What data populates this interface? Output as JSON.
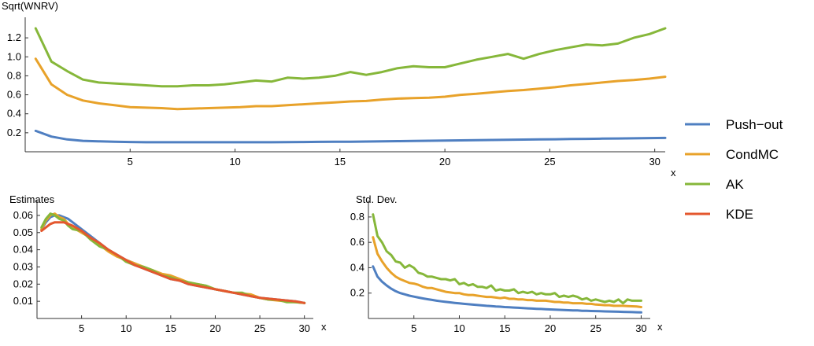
{
  "colors": {
    "pushout": "#4f7fc1",
    "condmc": "#e8a22a",
    "ak": "#86b73a",
    "kde": "#e4572e"
  },
  "legend": [
    {
      "name": "Push−out",
      "color": "#4f7fc1"
    },
    {
      "name": "CondMC",
      "color": "#e8a22a"
    },
    {
      "name": "AK",
      "color": "#86b73a"
    },
    {
      "name": "KDE",
      "color": "#e4572e"
    }
  ],
  "chart_data": [
    {
      "id": "top",
      "type": "line",
      "title": "",
      "xlabel": "x",
      "ylabel": "Sqrt(WNRV)",
      "xlim": [
        0,
        30.5
      ],
      "ylim": [
        0,
        1.35
      ],
      "xticks": [
        5,
        10,
        15,
        20,
        25,
        30
      ],
      "yticks": [
        0.2,
        0.4,
        0.6,
        0.8,
        1.0,
        1.2
      ],
      "ytick_labels": [
        "0.2",
        "0.4",
        "0.6",
        "0.8",
        "1.0",
        "1.2"
      ],
      "x": [
        0.5,
        1.25,
        2,
        2.75,
        3.5,
        4.25,
        5,
        5.75,
        6.5,
        7.25,
        8,
        8.75,
        9.5,
        10.25,
        11,
        11.75,
        12.5,
        13.25,
        14,
        14.75,
        15.5,
        16.25,
        17,
        17.75,
        18.5,
        19.25,
        20,
        20.75,
        21.5,
        22.25,
        23,
        23.75,
        24.5,
        25.25,
        26,
        26.75,
        27.5,
        28.25,
        29,
        29.75,
        30.5
      ],
      "series": [
        {
          "name": "Push−out",
          "color": "#4f7fc1",
          "values": [
            0.22,
            0.16,
            0.13,
            0.115,
            0.11,
            0.105,
            0.103,
            0.1,
            0.1,
            0.1,
            0.1,
            0.1,
            0.1,
            0.1,
            0.1,
            0.1,
            0.102,
            0.103,
            0.104,
            0.105,
            0.106,
            0.108,
            0.11,
            0.112,
            0.114,
            0.116,
            0.118,
            0.12,
            0.122,
            0.124,
            0.126,
            0.128,
            0.13,
            0.132,
            0.134,
            0.136,
            0.138,
            0.14,
            0.142,
            0.144,
            0.146
          ]
        },
        {
          "name": "CondMC",
          "color": "#e8a22a",
          "values": [
            0.98,
            0.71,
            0.6,
            0.54,
            0.51,
            0.49,
            0.47,
            0.465,
            0.46,
            0.45,
            0.455,
            0.46,
            0.465,
            0.47,
            0.48,
            0.48,
            0.49,
            0.5,
            0.51,
            0.52,
            0.53,
            0.535,
            0.55,
            0.56,
            0.565,
            0.57,
            0.58,
            0.6,
            0.61,
            0.625,
            0.64,
            0.65,
            0.665,
            0.68,
            0.7,
            0.715,
            0.73,
            0.745,
            0.755,
            0.77,
            0.79
          ]
        },
        {
          "name": "AK",
          "color": "#86b73a",
          "values": [
            1.3,
            0.95,
            0.85,
            0.76,
            0.73,
            0.72,
            0.71,
            0.7,
            0.69,
            0.69,
            0.7,
            0.7,
            0.71,
            0.73,
            0.75,
            0.74,
            0.78,
            0.77,
            0.78,
            0.8,
            0.84,
            0.81,
            0.84,
            0.88,
            0.9,
            0.89,
            0.89,
            0.93,
            0.97,
            1.0,
            1.03,
            0.98,
            1.03,
            1.07,
            1.1,
            1.13,
            1.12,
            1.14,
            1.2,
            1.24,
            1.3
          ]
        }
      ]
    },
    {
      "id": "estimates",
      "type": "line",
      "title": "",
      "xlabel": "x",
      "ylabel": "Estimates",
      "xlim": [
        0,
        31
      ],
      "ylim": [
        0,
        0.065
      ],
      "xticks": [
        5,
        10,
        15,
        20,
        25,
        30
      ],
      "yticks": [
        0.01,
        0.02,
        0.03,
        0.04,
        0.05,
        0.06
      ],
      "ytick_labels": [
        "0.01",
        "0.02",
        "0.03",
        "0.04",
        "0.05",
        "0.06"
      ],
      "x": [
        0.5,
        1,
        1.5,
        2,
        2.5,
        3,
        3.5,
        4,
        5,
        6,
        7,
        8,
        9,
        10,
        11,
        12,
        13,
        14,
        15,
        16,
        17,
        18,
        19,
        20,
        21,
        22,
        23,
        24,
        25,
        26,
        27,
        28,
        29,
        30
      ],
      "series": [
        {
          "name": "Push−out",
          "color": "#4f7fc1",
          "values": [
            0.052,
            0.056,
            0.059,
            0.06,
            0.06,
            0.059,
            0.058,
            0.056,
            0.052,
            0.048,
            0.044,
            0.04,
            0.037,
            0.034,
            0.032,
            0.029,
            0.027,
            0.025,
            0.023,
            0.022,
            0.02,
            0.019,
            0.018,
            0.017,
            0.016,
            0.015,
            0.014,
            0.013,
            0.012,
            0.0115,
            0.011,
            0.0105,
            0.01,
            0.009
          ]
        },
        {
          "name": "CondMC",
          "color": "#e8a22a",
          "values": [
            0.052,
            0.057,
            0.06,
            0.061,
            0.059,
            0.058,
            0.055,
            0.053,
            0.05,
            0.047,
            0.043,
            0.039,
            0.036,
            0.034,
            0.032,
            0.03,
            0.028,
            0.026,
            0.025,
            0.023,
            0.021,
            0.02,
            0.019,
            0.017,
            0.016,
            0.015,
            0.0145,
            0.014,
            0.012,
            0.011,
            0.0105,
            0.01,
            0.0095,
            0.009
          ]
        },
        {
          "name": "AK",
          "color": "#86b73a",
          "values": [
            0.053,
            0.058,
            0.061,
            0.06,
            0.058,
            0.057,
            0.054,
            0.052,
            0.051,
            0.046,
            0.042,
            0.04,
            0.037,
            0.033,
            0.031,
            0.03,
            0.028,
            0.025,
            0.024,
            0.022,
            0.021,
            0.02,
            0.019,
            0.017,
            0.016,
            0.015,
            0.015,
            0.013,
            0.012,
            0.011,
            0.011,
            0.0095,
            0.0095,
            0.009
          ]
        },
        {
          "name": "KDE",
          "color": "#e4572e",
          "values": [
            0.051,
            0.053,
            0.055,
            0.056,
            0.056,
            0.056,
            0.055,
            0.054,
            0.051,
            0.047,
            0.044,
            0.04,
            0.037,
            0.034,
            0.031,
            0.029,
            0.027,
            0.025,
            0.023,
            0.022,
            0.02,
            0.019,
            0.018,
            0.017,
            0.016,
            0.015,
            0.014,
            0.013,
            0.012,
            0.0115,
            0.011,
            0.0105,
            0.01,
            0.009
          ]
        }
      ]
    },
    {
      "id": "stddev",
      "type": "line",
      "title": "",
      "xlabel": "x",
      "ylabel": "Std. Dev.",
      "xlim": [
        0,
        31
      ],
      "ylim": [
        0,
        0.88
      ],
      "xticks": [
        5,
        10,
        15,
        20,
        25,
        30
      ],
      "yticks": [
        0.2,
        0.4,
        0.6,
        0.8
      ],
      "ytick_labels": [
        "0.2",
        "0.4",
        "0.6",
        "0.8"
      ],
      "x": [
        0.5,
        1,
        1.5,
        2,
        2.5,
        3,
        3.5,
        4,
        4.5,
        5,
        5.5,
        6,
        6.5,
        7,
        7.5,
        8,
        8.5,
        9,
        9.5,
        10,
        10.5,
        11,
        11.5,
        12,
        12.5,
        13,
        13.5,
        14,
        14.5,
        15,
        15.5,
        16,
        16.5,
        17,
        17.5,
        18,
        18.5,
        19,
        19.5,
        20,
        20.5,
        21,
        21.5,
        22,
        22.5,
        23,
        23.5,
        24,
        24.5,
        25,
        25.5,
        26,
        26.5,
        27,
        27.5,
        28,
        28.5,
        29,
        29.5,
        30
      ],
      "series": [
        {
          "name": "Push−out",
          "color": "#4f7fc1",
          "values": [
            0.41,
            0.33,
            0.29,
            0.26,
            0.235,
            0.215,
            0.2,
            0.19,
            0.18,
            0.172,
            0.165,
            0.158,
            0.152,
            0.146,
            0.14,
            0.135,
            0.131,
            0.127,
            0.123,
            0.119,
            0.115,
            0.112,
            0.109,
            0.106,
            0.103,
            0.1,
            0.098,
            0.095,
            0.093,
            0.09,
            0.088,
            0.086,
            0.084,
            0.082,
            0.08,
            0.078,
            0.076,
            0.075,
            0.073,
            0.071,
            0.07,
            0.068,
            0.067,
            0.065,
            0.064,
            0.063,
            0.061,
            0.06,
            0.059,
            0.058,
            0.057,
            0.056,
            0.055,
            0.054,
            0.053,
            0.052,
            0.051,
            0.05,
            0.049,
            0.048
          ]
        },
        {
          "name": "CondMC",
          "color": "#e8a22a",
          "values": [
            0.64,
            0.51,
            0.45,
            0.4,
            0.36,
            0.33,
            0.31,
            0.295,
            0.28,
            0.275,
            0.265,
            0.25,
            0.24,
            0.24,
            0.23,
            0.22,
            0.21,
            0.205,
            0.2,
            0.2,
            0.19,
            0.185,
            0.185,
            0.18,
            0.175,
            0.17,
            0.17,
            0.165,
            0.16,
            0.165,
            0.155,
            0.155,
            0.15,
            0.15,
            0.145,
            0.145,
            0.14,
            0.14,
            0.14,
            0.135,
            0.13,
            0.13,
            0.125,
            0.125,
            0.12,
            0.12,
            0.12,
            0.115,
            0.115,
            0.11,
            0.108,
            0.105,
            0.105,
            0.1,
            0.1,
            0.1,
            0.098,
            0.096,
            0.094,
            0.09
          ]
        },
        {
          "name": "AK",
          "color": "#86b73a",
          "values": [
            0.82,
            0.65,
            0.6,
            0.53,
            0.5,
            0.45,
            0.44,
            0.4,
            0.42,
            0.4,
            0.36,
            0.35,
            0.33,
            0.33,
            0.32,
            0.31,
            0.31,
            0.3,
            0.31,
            0.27,
            0.28,
            0.26,
            0.27,
            0.25,
            0.25,
            0.24,
            0.26,
            0.22,
            0.23,
            0.22,
            0.22,
            0.23,
            0.2,
            0.21,
            0.2,
            0.21,
            0.19,
            0.2,
            0.19,
            0.19,
            0.2,
            0.17,
            0.18,
            0.17,
            0.18,
            0.17,
            0.15,
            0.16,
            0.14,
            0.15,
            0.14,
            0.13,
            0.14,
            0.13,
            0.15,
            0.12,
            0.15,
            0.14,
            0.14,
            0.14
          ]
        }
      ]
    }
  ]
}
